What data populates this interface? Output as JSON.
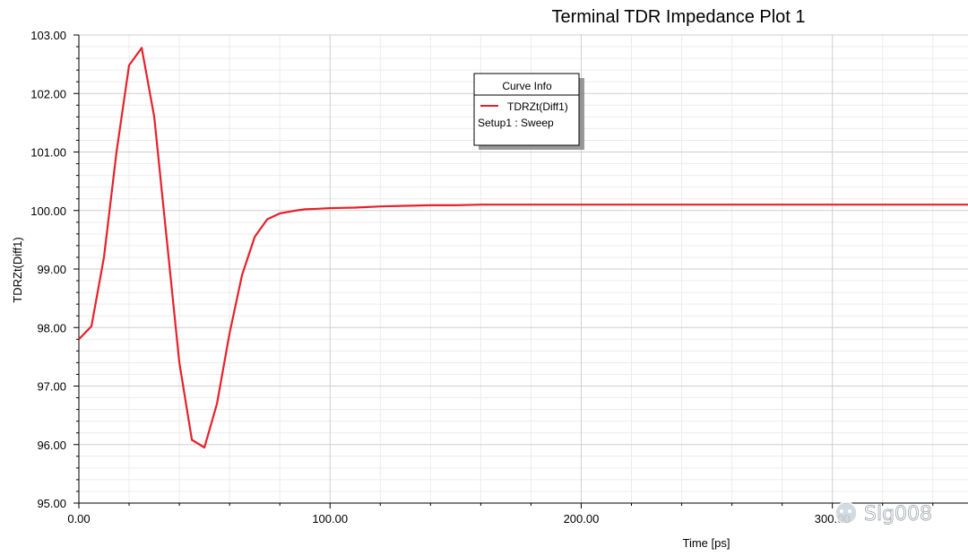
{
  "chart_data": {
    "type": "line",
    "title": "Terminal TDR Impedance Plot 1",
    "xlabel": "Time [ps]",
    "ylabel": "TDRZt(Diff1)",
    "xlim": [
      0,
      354
    ],
    "ylim": [
      95,
      103
    ],
    "x_ticks": [
      "0.00",
      "100.00",
      "200.00",
      "300.00"
    ],
    "x_tick_values": [
      0,
      100,
      200,
      300
    ],
    "y_ticks": [
      "95.00",
      "96.00",
      "97.00",
      "98.00",
      "99.00",
      "100.00",
      "101.00",
      "102.00",
      "103.00"
    ],
    "y_tick_values": [
      95,
      96,
      97,
      98,
      99,
      100,
      101,
      102,
      103
    ],
    "grid": true,
    "legend": {
      "title": "Curve Info",
      "placement": "top-center",
      "entries": [
        {
          "name": "TDRZt(Diff1)",
          "sub": "Setup1 : Sweep",
          "color": "#e8202a"
        }
      ]
    },
    "series": [
      {
        "name": "TDRZt(Diff1)",
        "color": "#e8202a",
        "x": [
          0,
          5,
          10,
          15,
          20,
          25,
          30,
          35,
          40,
          45,
          50,
          55,
          60,
          65,
          70,
          75,
          80,
          85,
          90,
          95,
          100,
          110,
          120,
          130,
          140,
          150,
          160,
          200,
          250,
          300,
          354
        ],
        "y": [
          97.8,
          98.02,
          99.2,
          101.0,
          102.48,
          102.78,
          101.6,
          99.5,
          97.4,
          96.08,
          95.95,
          96.7,
          97.9,
          98.9,
          99.55,
          99.85,
          99.95,
          99.99,
          100.02,
          100.03,
          100.04,
          100.05,
          100.07,
          100.08,
          100.09,
          100.09,
          100.1,
          100.1,
          100.1,
          100.1,
          100.1
        ]
      }
    ]
  },
  "watermark": {
    "text": "Slg008"
  }
}
